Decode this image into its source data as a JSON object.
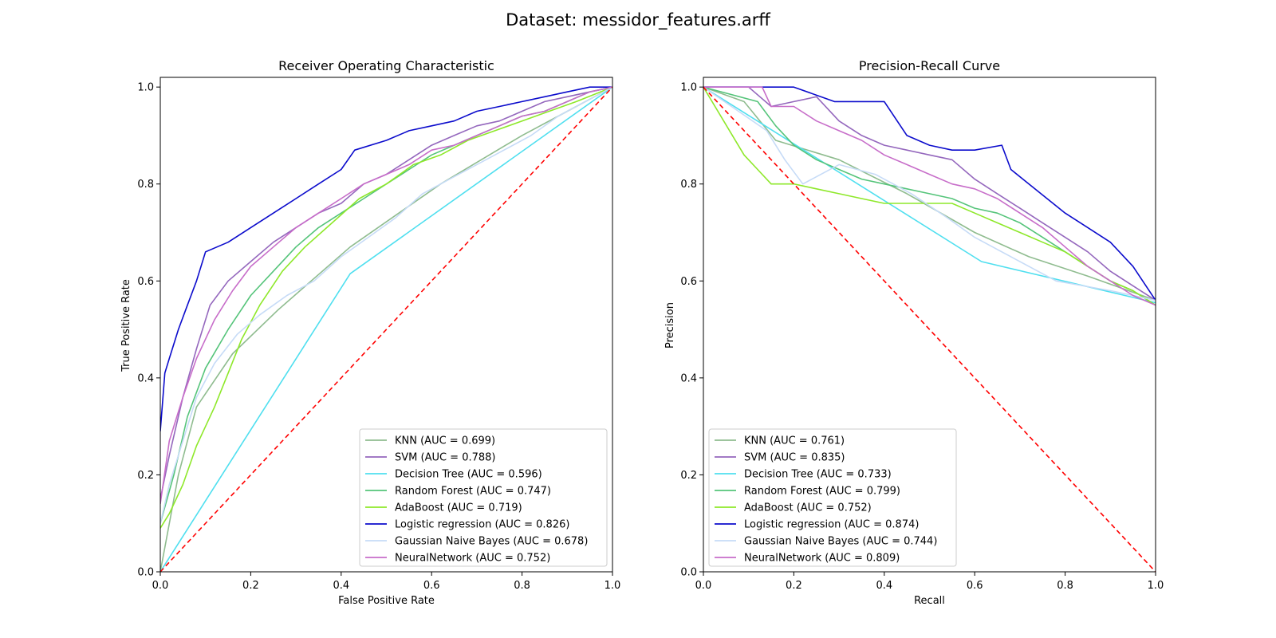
{
  "figure": {
    "title": "Dataset: messidor_features.arff"
  },
  "chart_data": [
    {
      "type": "line",
      "title": "Receiver Operating Characteristic",
      "xlabel": "False Positive Rate",
      "ylabel": "True Positive Rate",
      "xlim": [
        0,
        1.0
      ],
      "ylim": [
        0,
        1.02
      ],
      "xticks": [
        "0.0",
        "0.2",
        "0.4",
        "0.6",
        "0.8",
        "1.0"
      ],
      "yticks": [
        "0.0",
        "0.2",
        "0.4",
        "0.6",
        "0.8",
        "1.0"
      ],
      "grid": false,
      "legend_position": "lower right",
      "baseline": {
        "x": [
          0,
          1
        ],
        "y": [
          0,
          1
        ],
        "color": "#ff0000",
        "style": "dashed"
      },
      "series": [
        {
          "name": "KNN (AUC = 0.699)",
          "color": "#8fbc8f",
          "x": [
            0,
            0.04,
            0.08,
            0.16,
            0.26,
            0.42,
            0.62,
            0.8,
            0.92,
            1.0
          ],
          "y": [
            0,
            0.2,
            0.34,
            0.45,
            0.54,
            0.67,
            0.8,
            0.9,
            0.96,
            1.0
          ]
        },
        {
          "name": "SVM (AUC = 0.788)",
          "color": "#9467bd",
          "x": [
            0,
            0.02,
            0.05,
            0.08,
            0.11,
            0.15,
            0.2,
            0.25,
            0.3,
            0.35,
            0.4,
            0.45,
            0.5,
            0.55,
            0.6,
            0.65,
            0.7,
            0.75,
            0.8,
            0.85,
            0.9,
            0.95,
            1.0
          ],
          "y": [
            0.15,
            0.24,
            0.36,
            0.46,
            0.55,
            0.6,
            0.64,
            0.68,
            0.71,
            0.74,
            0.76,
            0.8,
            0.82,
            0.85,
            0.88,
            0.9,
            0.92,
            0.93,
            0.95,
            0.97,
            0.98,
            0.99,
            1.0
          ]
        },
        {
          "name": "Decision Tree (AUC = 0.596)",
          "color": "#4fdfef",
          "x": [
            0,
            0.42,
            1.0
          ],
          "y": [
            0,
            0.615,
            1.0
          ]
        },
        {
          "name": "Random Forest (AUC = 0.747)",
          "color": "#55c47a",
          "x": [
            0,
            0.03,
            0.06,
            0.1,
            0.15,
            0.2,
            0.25,
            0.3,
            0.35,
            0.4,
            0.45,
            0.5,
            0.55,
            0.6,
            0.65,
            0.7,
            0.75,
            0.8,
            0.85,
            0.9,
            0.95,
            1.0
          ],
          "y": [
            0.1,
            0.2,
            0.32,
            0.42,
            0.5,
            0.57,
            0.62,
            0.67,
            0.71,
            0.74,
            0.77,
            0.8,
            0.83,
            0.86,
            0.88,
            0.9,
            0.92,
            0.94,
            0.95,
            0.97,
            0.99,
            1.0
          ]
        },
        {
          "name": "AdaBoost (AUC = 0.719)",
          "color": "#8ee82a",
          "x": [
            0,
            0.02,
            0.05,
            0.08,
            0.12,
            0.15,
            0.18,
            0.22,
            0.27,
            0.32,
            0.38,
            0.44,
            0.5,
            0.56,
            0.62,
            0.68,
            0.74,
            0.8,
            0.86,
            0.92,
            1.0
          ],
          "y": [
            0.09,
            0.12,
            0.18,
            0.26,
            0.34,
            0.41,
            0.48,
            0.55,
            0.62,
            0.67,
            0.72,
            0.77,
            0.8,
            0.84,
            0.86,
            0.89,
            0.91,
            0.93,
            0.95,
            0.97,
            1.0
          ]
        },
        {
          "name": "Logistic regression (AUC = 0.826)",
          "color": "#0b0bcc",
          "x": [
            0,
            0.01,
            0.02,
            0.04,
            0.06,
            0.08,
            0.1,
            0.15,
            0.2,
            0.25,
            0.3,
            0.35,
            0.4,
            0.43,
            0.5,
            0.55,
            0.6,
            0.65,
            0.7,
            0.75,
            0.8,
            0.85,
            0.9,
            0.95,
            1.0
          ],
          "y": [
            0.29,
            0.41,
            0.44,
            0.5,
            0.55,
            0.6,
            0.66,
            0.68,
            0.71,
            0.74,
            0.77,
            0.8,
            0.83,
            0.87,
            0.89,
            0.91,
            0.92,
            0.93,
            0.95,
            0.96,
            0.97,
            0.98,
            0.99,
            1.0,
            1.0
          ]
        },
        {
          "name": "Gaussian Naive Bayes (AUC = 0.678)",
          "color": "#c6dbf7",
          "x": [
            0,
            0.02,
            0.05,
            0.08,
            0.12,
            0.17,
            0.22,
            0.28,
            0.34,
            0.4,
            0.46,
            0.52,
            0.58,
            0.64,
            0.7,
            0.76,
            0.82,
            0.88,
            0.94,
            1.0
          ],
          "y": [
            0.1,
            0.18,
            0.27,
            0.36,
            0.43,
            0.49,
            0.53,
            0.57,
            0.6,
            0.65,
            0.69,
            0.73,
            0.78,
            0.81,
            0.84,
            0.87,
            0.9,
            0.94,
            0.97,
            1.0
          ]
        },
        {
          "name": "NeuralNetwork (AUC = 0.752)",
          "color": "#c76dc9",
          "x": [
            0,
            0.02,
            0.05,
            0.08,
            0.12,
            0.16,
            0.2,
            0.25,
            0.3,
            0.35,
            0.4,
            0.45,
            0.5,
            0.55,
            0.6,
            0.65,
            0.7,
            0.75,
            0.8,
            0.85,
            0.9,
            0.95,
            1.0
          ],
          "y": [
            0.14,
            0.27,
            0.36,
            0.44,
            0.52,
            0.58,
            0.63,
            0.67,
            0.71,
            0.74,
            0.77,
            0.8,
            0.82,
            0.84,
            0.87,
            0.88,
            0.9,
            0.92,
            0.94,
            0.95,
            0.97,
            0.99,
            1.0
          ]
        }
      ]
    },
    {
      "type": "line",
      "title": "Precision-Recall Curve",
      "xlabel": "Recall",
      "ylabel": "Precision",
      "xlim": [
        0,
        1.0
      ],
      "ylim": [
        0,
        1.02
      ],
      "xticks": [
        "0.0",
        "0.2",
        "0.4",
        "0.6",
        "0.8",
        "1.0"
      ],
      "yticks": [
        "0.0",
        "0.2",
        "0.4",
        "0.6",
        "0.8",
        "1.0"
      ],
      "grid": false,
      "legend_position": "lower left",
      "baseline": {
        "x": [
          0,
          1
        ],
        "y": [
          1,
          0
        ],
        "color": "#ff0000",
        "style": "dashed"
      },
      "series": [
        {
          "name": "KNN (AUC = 0.761)",
          "color": "#8fbc8f",
          "x": [
            0,
            0.09,
            0.16,
            0.3,
            0.45,
            0.6,
            0.72,
            0.85,
            1.0
          ],
          "y": [
            1.0,
            0.97,
            0.89,
            0.85,
            0.78,
            0.7,
            0.65,
            0.61,
            0.56
          ]
        },
        {
          "name": "SVM (AUC = 0.835)",
          "color": "#9467bd",
          "x": [
            0,
            0.1,
            0.15,
            0.2,
            0.25,
            0.3,
            0.35,
            0.4,
            0.45,
            0.5,
            0.55,
            0.6,
            0.65,
            0.7,
            0.75,
            0.8,
            0.85,
            0.9,
            0.95,
            1.0
          ],
          "y": [
            1.0,
            1.0,
            0.96,
            0.97,
            0.98,
            0.93,
            0.9,
            0.88,
            0.87,
            0.86,
            0.85,
            0.81,
            0.78,
            0.75,
            0.72,
            0.69,
            0.66,
            0.62,
            0.59,
            0.56
          ]
        },
        {
          "name": "Decision Tree (AUC = 0.733)",
          "color": "#4fdfef",
          "x": [
            0,
            0.615,
            1.0
          ],
          "y": [
            1.0,
            0.64,
            0.555
          ]
        },
        {
          "name": "Random Forest (AUC = 0.799)",
          "color": "#55c47a",
          "x": [
            0,
            0.12,
            0.16,
            0.2,
            0.25,
            0.3,
            0.35,
            0.4,
            0.45,
            0.5,
            0.55,
            0.6,
            0.65,
            0.7,
            0.75,
            0.8,
            0.85,
            0.9,
            0.95,
            1.0
          ],
          "y": [
            1.0,
            0.97,
            0.92,
            0.88,
            0.85,
            0.83,
            0.81,
            0.8,
            0.79,
            0.78,
            0.77,
            0.75,
            0.74,
            0.72,
            0.69,
            0.66,
            0.63,
            0.6,
            0.58,
            0.55
          ]
        },
        {
          "name": "AdaBoost (AUC = 0.752)",
          "color": "#8ee82a",
          "x": [
            0,
            0.09,
            0.12,
            0.15,
            0.2,
            0.25,
            0.3,
            0.35,
            0.4,
            0.45,
            0.5,
            0.55,
            0.6,
            0.65,
            0.7,
            0.75,
            0.8,
            0.85,
            0.9,
            0.95,
            1.0
          ],
          "y": [
            1.0,
            0.86,
            0.83,
            0.8,
            0.8,
            0.79,
            0.78,
            0.77,
            0.76,
            0.76,
            0.76,
            0.76,
            0.74,
            0.72,
            0.7,
            0.68,
            0.66,
            0.63,
            0.6,
            0.58,
            0.55
          ]
        },
        {
          "name": "Logistic regression (AUC = 0.874)",
          "color": "#0b0bcc",
          "x": [
            0,
            0.1,
            0.2,
            0.29,
            0.4,
            0.45,
            0.5,
            0.55,
            0.6,
            0.66,
            0.68,
            0.72,
            0.76,
            0.8,
            0.85,
            0.9,
            0.95,
            1.0
          ],
          "y": [
            1.0,
            1.0,
            1.0,
            0.97,
            0.97,
            0.9,
            0.88,
            0.87,
            0.87,
            0.88,
            0.83,
            0.8,
            0.77,
            0.74,
            0.71,
            0.68,
            0.63,
            0.56
          ]
        },
        {
          "name": "Gaussian Naive Bayes (AUC = 0.744)",
          "color": "#c6dbf7",
          "x": [
            0,
            0.14,
            0.18,
            0.22,
            0.3,
            0.38,
            0.46,
            0.54,
            0.6,
            0.66,
            0.72,
            0.78,
            0.84,
            0.9,
            1.0
          ],
          "y": [
            1.0,
            0.91,
            0.85,
            0.8,
            0.84,
            0.82,
            0.78,
            0.73,
            0.69,
            0.66,
            0.63,
            0.6,
            0.59,
            0.58,
            0.56
          ]
        },
        {
          "name": "NeuralNetwork (AUC = 0.809)",
          "color": "#c76dc9",
          "x": [
            0,
            0.13,
            0.15,
            0.2,
            0.25,
            0.3,
            0.35,
            0.4,
            0.45,
            0.5,
            0.55,
            0.6,
            0.65,
            0.7,
            0.75,
            0.8,
            0.85,
            0.9,
            0.95,
            1.0
          ],
          "y": [
            1.0,
            1.0,
            0.96,
            0.96,
            0.93,
            0.91,
            0.89,
            0.86,
            0.84,
            0.82,
            0.8,
            0.79,
            0.77,
            0.74,
            0.71,
            0.67,
            0.63,
            0.6,
            0.57,
            0.55
          ]
        }
      ]
    }
  ]
}
